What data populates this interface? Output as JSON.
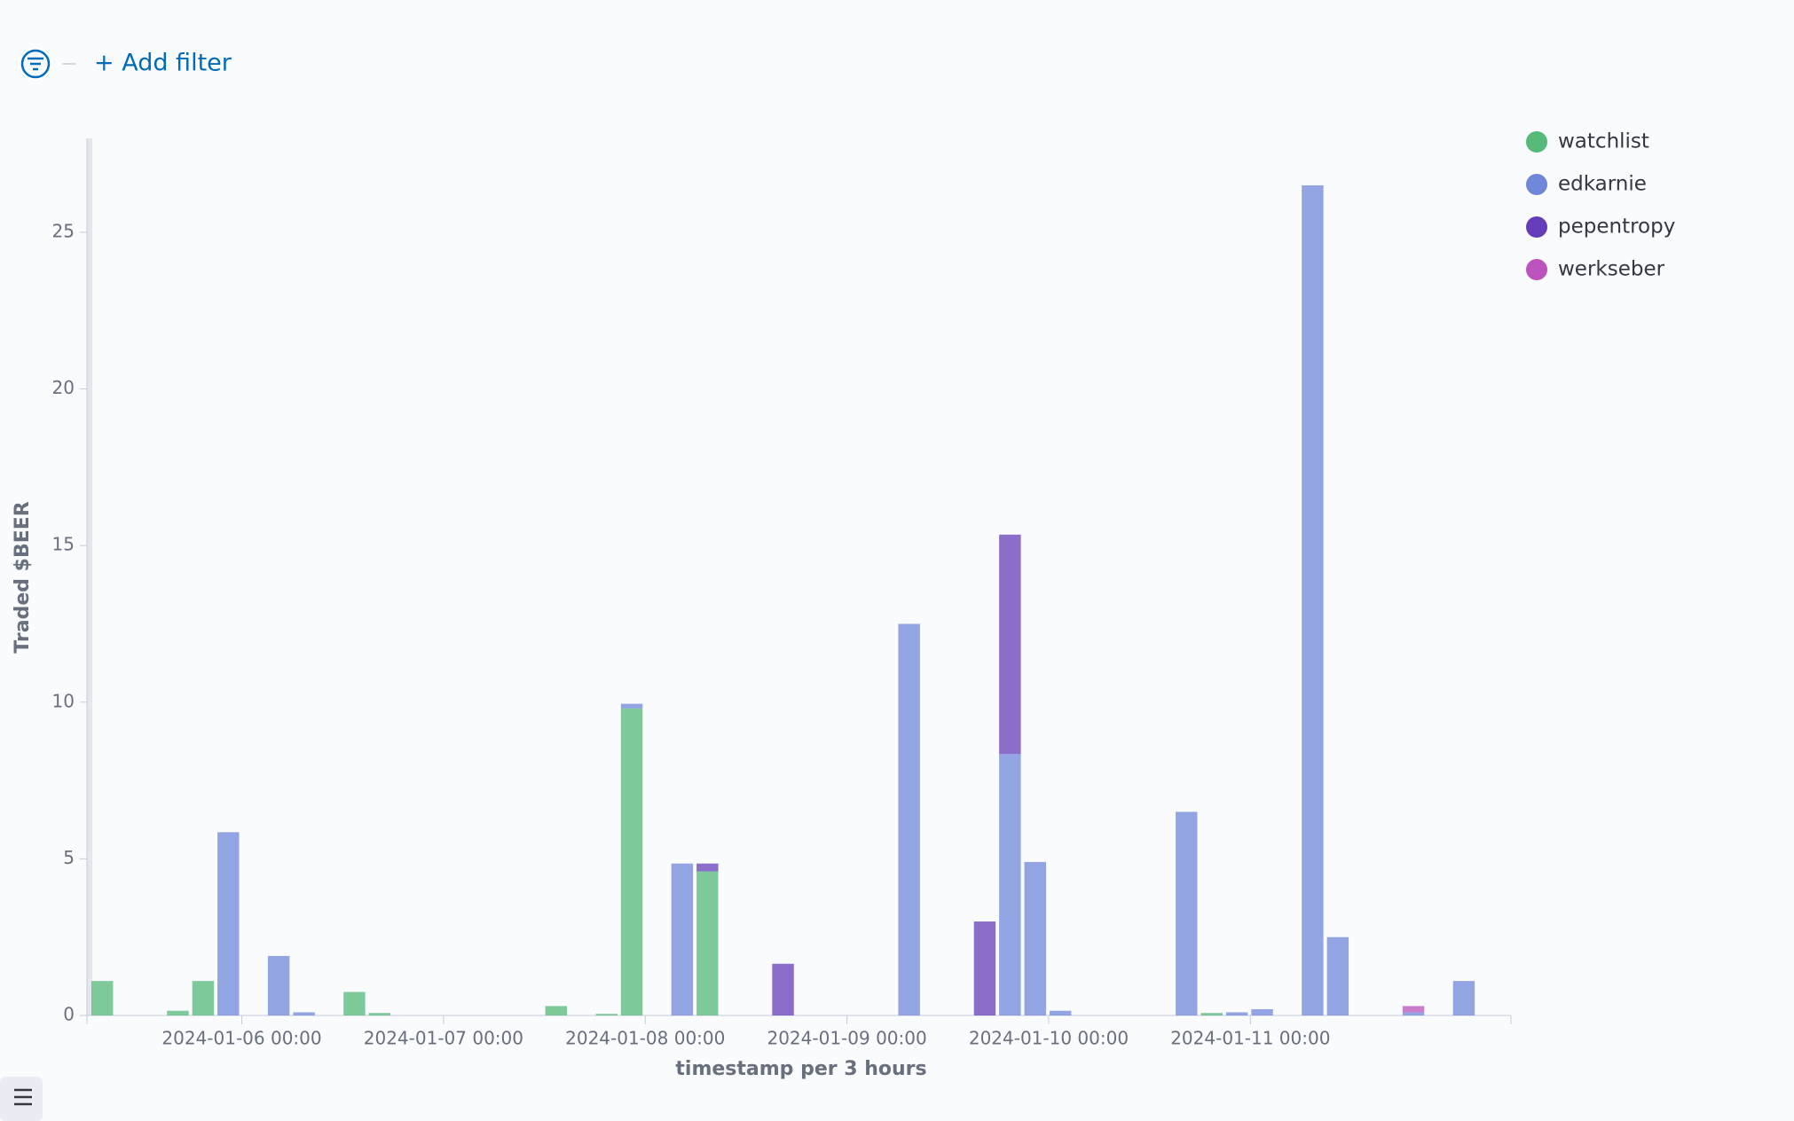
{
  "filter_bar": {
    "add_filter": "+ Add filter"
  },
  "chart_data": {
    "type": "bar",
    "stacked": true,
    "x_label": "timestamp per 3 hours",
    "y_label": "Traded $BEER",
    "x": [
      "2024-01-05 06:00",
      "2024-01-05 15:00",
      "2024-01-05 18:00",
      "2024-01-05 21:00",
      "2024-01-06 03:00",
      "2024-01-06 06:00",
      "2024-01-06 12:00",
      "2024-01-06 15:00",
      "2024-01-07 12:00",
      "2024-01-07 18:00",
      "2024-01-07 21:00",
      "2024-01-08 03:00",
      "2024-01-08 06:00",
      "2024-01-08 15:00",
      "2024-01-09 06:00",
      "2024-01-09 15:00",
      "2024-01-09 18:00",
      "2024-01-09 21:00",
      "2024-01-10 00:00",
      "2024-01-10 15:00",
      "2024-01-10 18:00",
      "2024-01-10 21:00",
      "2024-01-11 00:00",
      "2024-01-11 06:00",
      "2024-01-11 09:00",
      "2024-01-11 18:00",
      "2024-01-12 00:00"
    ],
    "series": [
      {
        "name": "watchlist",
        "color": "#54b979",
        "values": [
          1.1,
          0.15,
          1.1,
          null,
          null,
          null,
          0.75,
          0.08,
          0.3,
          0.05,
          9.8,
          null,
          4.6,
          null,
          null,
          null,
          null,
          null,
          null,
          null,
          0.08,
          null,
          null,
          null,
          null,
          null,
          null
        ]
      },
      {
        "name": "edkarnie",
        "color": "#6f87d8",
        "values": [
          null,
          null,
          null,
          5.85,
          1.9,
          0.1,
          null,
          null,
          null,
          null,
          0.15,
          4.85,
          null,
          null,
          12.5,
          null,
          8.35,
          4.9,
          0.15,
          6.5,
          null,
          0.1,
          0.2,
          26.5,
          2.5,
          0.1,
          1.1
        ]
      },
      {
        "name": "pepentropy",
        "color": "#663db8",
        "values": [
          null,
          null,
          null,
          null,
          null,
          null,
          null,
          null,
          null,
          null,
          null,
          null,
          0.25,
          1.65,
          null,
          3.0,
          7.0,
          null,
          null,
          null,
          null,
          null,
          null,
          null,
          null,
          null,
          null
        ]
      },
      {
        "name": "werkseber",
        "color": "#bc52bc",
        "values": [
          null,
          null,
          null,
          null,
          null,
          null,
          null,
          null,
          null,
          null,
          null,
          null,
          null,
          null,
          null,
          null,
          null,
          null,
          null,
          null,
          null,
          null,
          null,
          null,
          null,
          0.2,
          null
        ]
      }
    ],
    "bin_hours": 3,
    "xlim": [
      "2024-01-05 06:00",
      "2024-01-12 07:00"
    ],
    "xticks": [
      "2024-01-06 00:00",
      "2024-01-07 00:00",
      "2024-01-08 00:00",
      "2024-01-09 00:00",
      "2024-01-10 00:00",
      "2024-01-11 00:00"
    ],
    "ylim": [
      0,
      28
    ],
    "yticks": [
      0,
      5,
      10,
      15,
      20,
      25
    ],
    "legend": "top-right"
  }
}
